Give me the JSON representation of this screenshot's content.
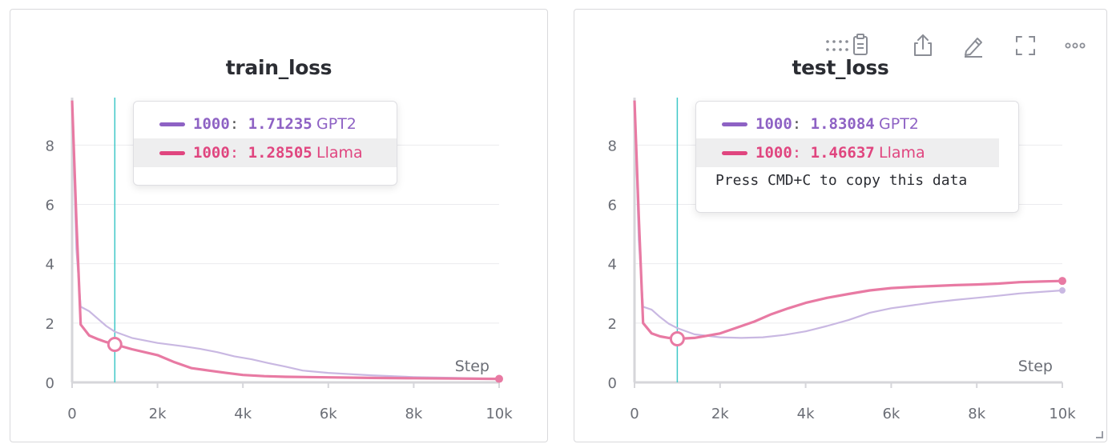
{
  "colors": {
    "gpt2": "#8e62c4",
    "llama": "#e0457f",
    "gpt2_line": "#c9b8e2",
    "llama_line": "#e87aa3",
    "cursor": "#3ec8c8",
    "grid": "#ebebee",
    "axis": "#d6d6da"
  },
  "toolbar": {
    "icons": [
      "drag-handle-icon",
      "clipboard-icon",
      "share-icon",
      "pencil-icon",
      "fullscreen-icon",
      "more-icon"
    ]
  },
  "chart_data": [
    {
      "type": "line",
      "title": "train_loss",
      "xlabel": "Step",
      "ylabel": "",
      "xlim": [
        0,
        10000
      ],
      "ylim": [
        0,
        9.6
      ],
      "xticks": [
        0,
        2000,
        4000,
        6000,
        8000,
        10000
      ],
      "xtick_labels": [
        "0",
        "2k",
        "4k",
        "6k",
        "8k",
        "10k"
      ],
      "yticks": [
        0,
        2,
        4,
        6,
        8
      ],
      "ytick_labels": [
        "0",
        "2",
        "4",
        "6",
        "8"
      ],
      "grid": true,
      "cursor_x": 1000,
      "series": [
        {
          "name": "GPT2",
          "x": [
            0,
            100,
            200,
            400,
            600,
            800,
            1000,
            1400,
            2000,
            2600,
            3000,
            3400,
            3800,
            4200,
            4600,
            5000,
            5400,
            6000,
            7000,
            8000,
            9000,
            10000
          ],
          "y": [
            9.5,
            4.5,
            2.55,
            2.4,
            2.15,
            1.9,
            1.71,
            1.5,
            1.33,
            1.22,
            1.13,
            1.02,
            0.88,
            0.78,
            0.65,
            0.53,
            0.4,
            0.32,
            0.24,
            0.18,
            0.15,
            0.12
          ]
        },
        {
          "name": "Llama",
          "x": [
            0,
            100,
            200,
            400,
            600,
            800,
            1000,
            1400,
            2000,
            2400,
            2800,
            3200,
            3600,
            4000,
            4500,
            5000,
            6000,
            7000,
            8000,
            9000,
            10000
          ],
          "y": [
            9.5,
            5.5,
            1.95,
            1.58,
            1.46,
            1.36,
            1.28,
            1.12,
            0.92,
            0.68,
            0.48,
            0.4,
            0.32,
            0.25,
            0.21,
            0.19,
            0.17,
            0.15,
            0.14,
            0.13,
            0.12
          ]
        }
      ],
      "tooltip": {
        "step": "1000",
        "rows": [
          {
            "step": "1000",
            "value": "1.71235",
            "name": "GPT2"
          },
          {
            "step": "1000",
            "value": "1.28505",
            "name": "Llama"
          }
        ],
        "hint": ""
      }
    },
    {
      "type": "line",
      "title": "test_loss",
      "xlabel": "Step",
      "ylabel": "",
      "xlim": [
        0,
        10000
      ],
      "ylim": [
        0,
        9.6
      ],
      "xticks": [
        0,
        2000,
        4000,
        6000,
        8000,
        10000
      ],
      "xtick_labels": [
        "0",
        "2k",
        "4k",
        "6k",
        "8k",
        "10k"
      ],
      "yticks": [
        0,
        2,
        4,
        6,
        8
      ],
      "ytick_labels": [
        "0",
        "2",
        "4",
        "6",
        "8"
      ],
      "grid": true,
      "cursor_x": 1000,
      "series": [
        {
          "name": "GPT2",
          "x": [
            0,
            100,
            200,
            400,
            600,
            800,
            1000,
            1400,
            2000,
            2500,
            3000,
            3500,
            4000,
            4500,
            5000,
            5500,
            6000,
            6500,
            7000,
            7500,
            8000,
            8500,
            9000,
            9500,
            10000
          ],
          "y": [
            9.5,
            4.8,
            2.55,
            2.45,
            2.2,
            1.98,
            1.83,
            1.62,
            1.52,
            1.5,
            1.52,
            1.6,
            1.72,
            1.9,
            2.1,
            2.35,
            2.5,
            2.6,
            2.7,
            2.78,
            2.85,
            2.92,
            3.0,
            3.05,
            3.1
          ]
        },
        {
          "name": "Llama",
          "x": [
            0,
            100,
            200,
            400,
            600,
            800,
            1000,
            1400,
            2000,
            2400,
            2800,
            3200,
            3600,
            4000,
            4500,
            5000,
            5500,
            6000,
            6500,
            7000,
            7500,
            8000,
            8500,
            9000,
            9500,
            10000
          ],
          "y": [
            9.5,
            5.6,
            2.0,
            1.65,
            1.55,
            1.5,
            1.47,
            1.5,
            1.65,
            1.85,
            2.05,
            2.3,
            2.5,
            2.68,
            2.85,
            2.98,
            3.1,
            3.18,
            3.22,
            3.25,
            3.28,
            3.3,
            3.33,
            3.38,
            3.4,
            3.42
          ]
        }
      ],
      "tooltip": {
        "step": "1000",
        "rows": [
          {
            "step": "1000",
            "value": "1.83084",
            "name": "GPT2"
          },
          {
            "step": "1000",
            "value": "1.46637",
            "name": "Llama"
          }
        ],
        "hint": "Press CMD+C to copy this data"
      }
    }
  ]
}
